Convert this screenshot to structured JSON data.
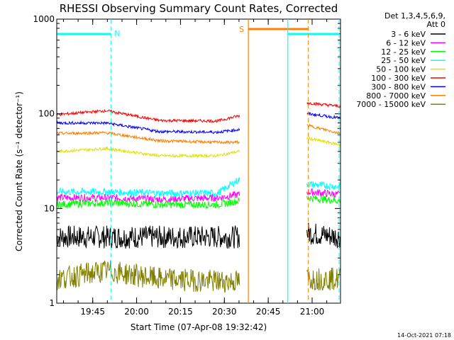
{
  "chart_data": {
    "type": "line",
    "title": "RHESSI Observing Summary Count Rates, Corrected",
    "xlabel": "Start Time (07-Apr-08 19:32:42)",
    "ylabel": "Corrected Count Rate (s⁻¹ detector⁻¹)",
    "ylog": true,
    "ylim": [
      1,
      1000
    ],
    "xlim_minutes_after_1932": [
      0,
      97
    ],
    "x_ticks": [
      "19:45",
      "20:00",
      "20:15",
      "20:30",
      "20:45",
      "21:00"
    ],
    "y_ticks": [
      "1",
      "10",
      "100",
      "1000"
    ],
    "legend_header": [
      "Det 1,3,4,5,6,9,",
      "Att 0"
    ],
    "legend_position": "right",
    "footer_date": "14-Oct-2021 07:18",
    "annotations": [
      {
        "text": "N",
        "color": "#00ffff"
      },
      {
        "text": "S",
        "color": "#ff8000"
      }
    ],
    "segments": [
      {
        "start": 0,
        "end": 62.5
      },
      {
        "start": 85.5,
        "end": 97
      }
    ],
    "series": [
      {
        "name": "3 - 6 keV",
        "color": "#000000",
        "values": [
          5,
          5,
          5,
          5,
          5
        ],
        "values_after_gap": [
          5.5,
          5
        ]
      },
      {
        "name": "6 - 12 keV",
        "color": "#ff00ff",
        "values": [
          13,
          13,
          12.5,
          13,
          14
        ],
        "values_after_gap": [
          15,
          14
        ]
      },
      {
        "name": "12 - 25 keV",
        "color": "#00ff00",
        "values": [
          11,
          11.5,
          11,
          11,
          12
        ],
        "values_after_gap": [
          13,
          12
        ]
      },
      {
        "name": "25 - 50 keV",
        "color": "#00ffff",
        "values": [
          15,
          15,
          14.5,
          14.5,
          20
        ],
        "values_after_gap": [
          18,
          17
        ]
      },
      {
        "name": "50 - 100 keV",
        "color": "#e0e000",
        "values": [
          40,
          43,
          36,
          36,
          40
        ],
        "values_after_gap": [
          55,
          47
        ]
      },
      {
        "name": "100 - 300 keV",
        "color": "#ff0000",
        "values": [
          98,
          108,
          85,
          84,
          95
        ],
        "values_after_gap": [
          130,
          120
        ]
      },
      {
        "name": "300 - 800 keV",
        "color": "#0000ff",
        "values": [
          80,
          80,
          65,
          64,
          68
        ],
        "values_after_gap": [
          100,
          90
        ]
      },
      {
        "name": "800 - 7000 keV",
        "color": "#ff8000",
        "values": [
          62,
          63,
          52,
          50,
          50
        ],
        "values_after_gap": [
          75,
          62
        ]
      },
      {
        "name": "7000 - 15000 keV",
        "color": "#808000",
        "values": [
          1.8,
          2.2,
          1.8,
          1.7,
          1.7
        ],
        "values_after_gap": [
          1.8,
          1.8
        ]
      }
    ],
    "series_sample_times_minutes": [
      0,
      17,
      35,
      55,
      62
    ],
    "gap_sample_times_minutes": [
      86,
      97
    ]
  }
}
